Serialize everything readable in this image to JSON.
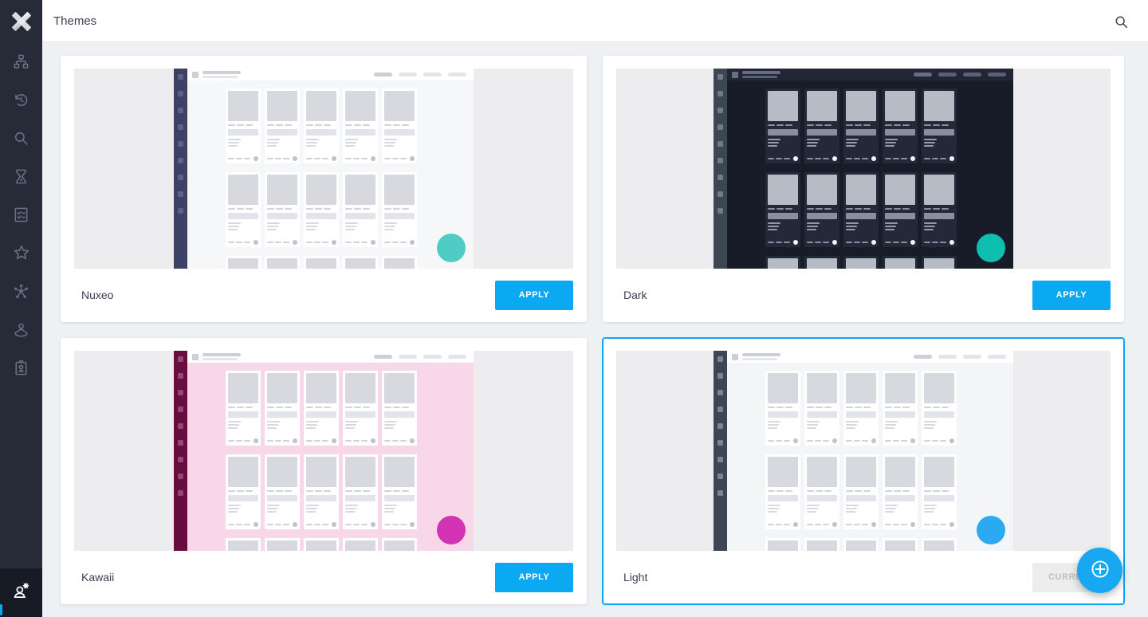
{
  "header": {
    "title": "Themes",
    "search_icon": "search-icon"
  },
  "sidebar": {
    "logo_icon": "nuxeo-x-logo",
    "items": [
      {
        "id": "browser",
        "icon": "tree-icon"
      },
      {
        "id": "recents",
        "icon": "history-icon"
      },
      {
        "id": "search",
        "icon": "search-icon"
      },
      {
        "id": "pending",
        "icon": "hourglass-icon"
      },
      {
        "id": "tasks",
        "icon": "checklist-icon"
      },
      {
        "id": "favorites",
        "icon": "star-icon"
      },
      {
        "id": "collections",
        "icon": "network-icon"
      },
      {
        "id": "personal-space",
        "icon": "person-ring-icon"
      },
      {
        "id": "administration",
        "icon": "badge-icon"
      }
    ],
    "bottom_icon": "user-settings-icon",
    "accent": "#0ba7f2"
  },
  "themes": [
    {
      "name": "Nuxeo",
      "action_label": "APPLY",
      "selected": false,
      "colors": {
        "preview_bg": "#ededef",
        "sidebar": "#3e4166",
        "sidebar_square": "#5f6287",
        "topbar": "#ffffff",
        "el_strong": "#cdced6",
        "el_soft": "#e4e5ea",
        "content": "#f6f7f9",
        "mini_card": "#ffffff",
        "block": "#d8d9de",
        "dash": "#d2d3da",
        "bar": "#e3e4e9",
        "line": "#d8d9de",
        "dot": "#c0c2cb",
        "fab": "#4fccc4"
      }
    },
    {
      "name": "Dark",
      "action_label": "APPLY",
      "selected": false,
      "colors": {
        "preview_bg": "#ededef",
        "sidebar": "#3d4653",
        "sidebar_square": "#717a88",
        "topbar": "#212536",
        "el_strong": "#676e80",
        "el_soft": "#5a6173",
        "content": "#181c29",
        "mini_card": "#242939",
        "block": "#b7bbc5",
        "dash": "#8a8fa0",
        "bar": "#8a8fa0",
        "line": "#959baa",
        "dot": "#f4f5f7",
        "fab": "#0ebfb1"
      }
    },
    {
      "name": "Kawaii",
      "action_label": "APPLY",
      "selected": false,
      "colors": {
        "preview_bg": "#ededef",
        "sidebar": "#690d41",
        "sidebar_square": "#95476f",
        "topbar": "#ffffff",
        "el_strong": "#cdced6",
        "el_soft": "#e4e5ea",
        "content": "#f8d8e8",
        "mini_card": "#ffffff",
        "block": "#d8d9de",
        "dash": "#d2d3da",
        "bar": "#e3e4e9",
        "line": "#d8d9de",
        "dot": "#c0c2cb",
        "fab": "#d233b5"
      }
    },
    {
      "name": "Light",
      "action_label": "CURRENT",
      "selected": true,
      "colors": {
        "preview_bg": "#ededef",
        "sidebar": "#3e4553",
        "sidebar_square": "#7d8491",
        "topbar": "#ffffff",
        "el_strong": "#cdced6",
        "el_soft": "#e4e5ea",
        "content": "#f3f5f7",
        "mini_card": "#ffffff",
        "block": "#d8d9de",
        "dash": "#d2d3da",
        "bar": "#e3e4e9",
        "line": "#d8d9de",
        "dot": "#c0c2cb",
        "fab": "#2baaf2"
      }
    }
  ],
  "fab": {
    "icon": "plus-circle-icon",
    "color": "#18a8f2"
  }
}
